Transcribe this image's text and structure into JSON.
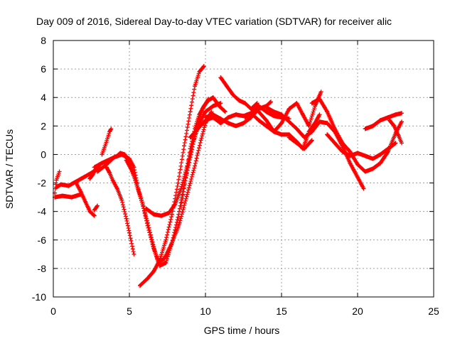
{
  "chart_data": {
    "type": "scatter",
    "title": "Day 009 of 2016, Sidereal Day-to-day VTEC variation (SDTVAR) for receiver alic",
    "xlabel": "GPS time / hours",
    "ylabel": "SDTVAR / TECUs",
    "xlim": [
      0,
      25
    ],
    "ylim": [
      -10,
      8
    ],
    "xticks": [
      "0",
      "5",
      "10",
      "15",
      "20",
      "25"
    ],
    "yticks": [
      "-10",
      "-8",
      "-6",
      "-4",
      "-2",
      "0",
      "2",
      "4",
      "6",
      "8"
    ],
    "grid": true,
    "marker": "+",
    "color": "#ff0000",
    "series": [
      {
        "x": [
          0.1,
          0.6,
          1.2,
          1.8
        ],
        "y": [
          -3.0,
          -2.9,
          -3.0,
          -2.8
        ]
      },
      {
        "x": [
          0.2,
          0.5,
          1.0,
          1.5,
          2.0,
          2.5,
          3.0
        ],
        "y": [
          -2.3,
          -2.1,
          -2.2,
          -1.9,
          -1.6,
          -1.3,
          -0.9
        ]
      },
      {
        "x": [
          0.1,
          0.2,
          0.4
        ],
        "y": [
          -2.7,
          -1.8,
          -1.2
        ]
      },
      {
        "x": [
          1.5,
          1.8,
          2.1,
          2.4,
          2.7
        ],
        "y": [
          -2.0,
          -2.6,
          -3.3,
          -4.0,
          -4.3
        ]
      },
      {
        "x": [
          2.7,
          2.9
        ],
        "y": [
          -3.9,
          -3.6
        ]
      },
      {
        "x": [
          2.4,
          2.6,
          2.8,
          3.0
        ],
        "y": [
          -1.7,
          -1.4,
          -1.0,
          -0.8
        ]
      },
      {
        "x": [
          3.2,
          3.4,
          3.7,
          3.8
        ],
        "y": [
          0.0,
          0.6,
          1.6,
          1.8
        ]
      },
      {
        "x": [
          2.9,
          3.5,
          4.0,
          4.5,
          5.0,
          5.3,
          5.5
        ],
        "y": [
          -1.2,
          -0.7,
          -0.2,
          0.0,
          -0.3,
          -0.9,
          -2.0
        ]
      },
      {
        "x": [
          3.5,
          3.7,
          3.9,
          4.2,
          4.5,
          4.8,
          5.0,
          5.3
        ],
        "y": [
          -0.9,
          -1.3,
          -1.8,
          -2.4,
          -3.2,
          -4.5,
          -5.5,
          -7.0
        ]
      },
      {
        "x": [
          2.7,
          3.2,
          3.8,
          4.2,
          4.4,
          4.7,
          5.0,
          5.4,
          5.8,
          6.2,
          6.6,
          6.9,
          7.3,
          7.8,
          8.3,
          8.8,
          9.3,
          9.7,
          10.0,
          10.4
        ],
        "y": [
          -0.9,
          -0.6,
          -0.3,
          -0.1,
          0.1,
          0.0,
          -0.6,
          -1.8,
          -3.2,
          -4.8,
          -6.5,
          -7.6,
          -7.3,
          -6.2,
          -4.8,
          -2.8,
          -0.8,
          1.0,
          2.2,
          3.0
        ]
      },
      {
        "x": [
          4.8,
          5.2,
          5.5,
          5.9,
          6.2,
          6.6,
          7.0,
          7.4,
          7.8,
          8.2,
          8.6,
          9.0,
          9.4,
          9.8,
          10.2
        ],
        "y": [
          -0.4,
          -1.2,
          -2.2,
          -3.6,
          -5.0,
          -6.6,
          -7.8,
          -7.6,
          -6.2,
          -4.4,
          -2.2,
          -0.2,
          1.8,
          3.2,
          3.9
        ]
      },
      {
        "x": [
          5.7,
          6.2,
          6.6,
          7.0,
          7.4,
          7.8,
          8.2,
          8.6,
          9.0,
          9.3,
          9.6,
          9.9
        ],
        "y": [
          -9.2,
          -8.7,
          -8.2,
          -7.4,
          -6.0,
          -4.2,
          -2.0,
          0.6,
          3.0,
          4.8,
          5.8,
          6.2
        ]
      },
      {
        "x": [
          6.1,
          6.6,
          7.1,
          7.6,
          8.0,
          8.4,
          8.8,
          9.2,
          9.6,
          10.0,
          10.5,
          11.0
        ],
        "y": [
          -3.8,
          -4.2,
          -4.3,
          -4.1,
          -3.5,
          -2.4,
          -0.8,
          0.9,
          2.2,
          3.0,
          3.4,
          3.6
        ]
      },
      {
        "x": [
          8.4,
          8.7,
          9.0,
          9.3,
          9.6,
          9.9,
          10.2,
          10.5,
          10.9,
          11.3
        ],
        "y": [
          -3.6,
          -1.6,
          0.4,
          1.8,
          2.8,
          3.4,
          3.8,
          4.0,
          3.4,
          3.0
        ]
      },
      {
        "x": [
          9.0,
          9.5,
          10.0,
          10.5,
          11.0,
          11.5,
          12.0,
          12.5,
          13.0,
          13.5,
          14.0,
          14.5,
          15.0,
          15.5
        ],
        "y": [
          1.2,
          1.8,
          2.4,
          2.6,
          2.2,
          2.6,
          2.8,
          2.7,
          2.9,
          3.4,
          3.0,
          2.7,
          2.6,
          2.5
        ]
      },
      {
        "x": [
          10.0,
          10.5,
          11.0,
          11.5,
          12.0,
          12.5,
          13.0,
          13.5,
          14.0,
          14.3
        ],
        "y": [
          2.6,
          2.8,
          2.5,
          2.2,
          2.0,
          2.2,
          2.6,
          3.2,
          3.4,
          3.7
        ]
      },
      {
        "x": [
          11.0,
          11.4,
          11.8,
          12.2,
          12.6,
          13.0,
          13.4
        ],
        "y": [
          5.4,
          4.8,
          4.2,
          3.8,
          3.6,
          3.2,
          3.6
        ]
      },
      {
        "x": [
          12.6,
          13.0,
          13.5,
          14.0,
          14.5,
          15.0,
          15.5,
          16.0,
          16.4,
          16.8,
          17.2,
          17.6
        ],
        "y": [
          2.6,
          2.9,
          2.4,
          2.0,
          1.6,
          2.2,
          3.2,
          3.6,
          2.8,
          2.0,
          3.4,
          4.4
        ]
      },
      {
        "x": [
          13.5,
          14.0,
          14.5,
          15.0,
          15.5,
          16.0,
          16.4,
          16.8,
          17.2,
          17.5
        ],
        "y": [
          3.0,
          2.4,
          1.6,
          1.4,
          1.4,
          0.9,
          0.4,
          1.6,
          2.2,
          2.8
        ]
      },
      {
        "x": [
          14.0,
          14.5,
          15.0,
          15.5,
          16.0,
          16.5,
          17.0,
          17.5,
          18.0,
          18.5,
          19.0,
          19.5,
          20.0,
          20.4
        ],
        "y": [
          3.3,
          3.0,
          2.8,
          2.3,
          1.8,
          1.2,
          1.6,
          2.3,
          2.2,
          1.6,
          0.6,
          -0.6,
          -1.6,
          -2.4
        ]
      },
      {
        "x": [
          17.0,
          17.5,
          18.0,
          18.5,
          19.0,
          19.5,
          20.0,
          20.5,
          21.0,
          21.5,
          22.0,
          22.5,
          22.9
        ],
        "y": [
          3.6,
          3.9,
          3.0,
          1.8,
          0.8,
          0.2,
          -0.7,
          -1.2,
          -1.0,
          -0.6,
          0.2,
          1.5,
          2.3
        ]
      },
      {
        "x": [
          18.0,
          18.5,
          19.0,
          19.5,
          20.0,
          20.5,
          21.0,
          21.5,
          22.0,
          22.5
        ],
        "y": [
          1.4,
          0.8,
          0.2,
          -0.1,
          0.1,
          -0.1,
          -0.3,
          0.0,
          0.4,
          0.8
        ]
      },
      {
        "x": [
          20.5,
          21.0,
          21.5,
          22.0,
          22.5,
          22.9
        ],
        "y": [
          1.8,
          2.0,
          2.4,
          2.6,
          2.8,
          2.9
        ]
      },
      {
        "x": [
          22.1,
          22.4,
          22.7,
          22.9
        ],
        "y": [
          2.4,
          2.0,
          1.3,
          0.8
        ]
      },
      {
        "x": [
          15.5,
          16.0,
          16.5,
          17.0
        ],
        "y": [
          1.2,
          0.8,
          0.4,
          1.0
        ]
      }
    ]
  }
}
